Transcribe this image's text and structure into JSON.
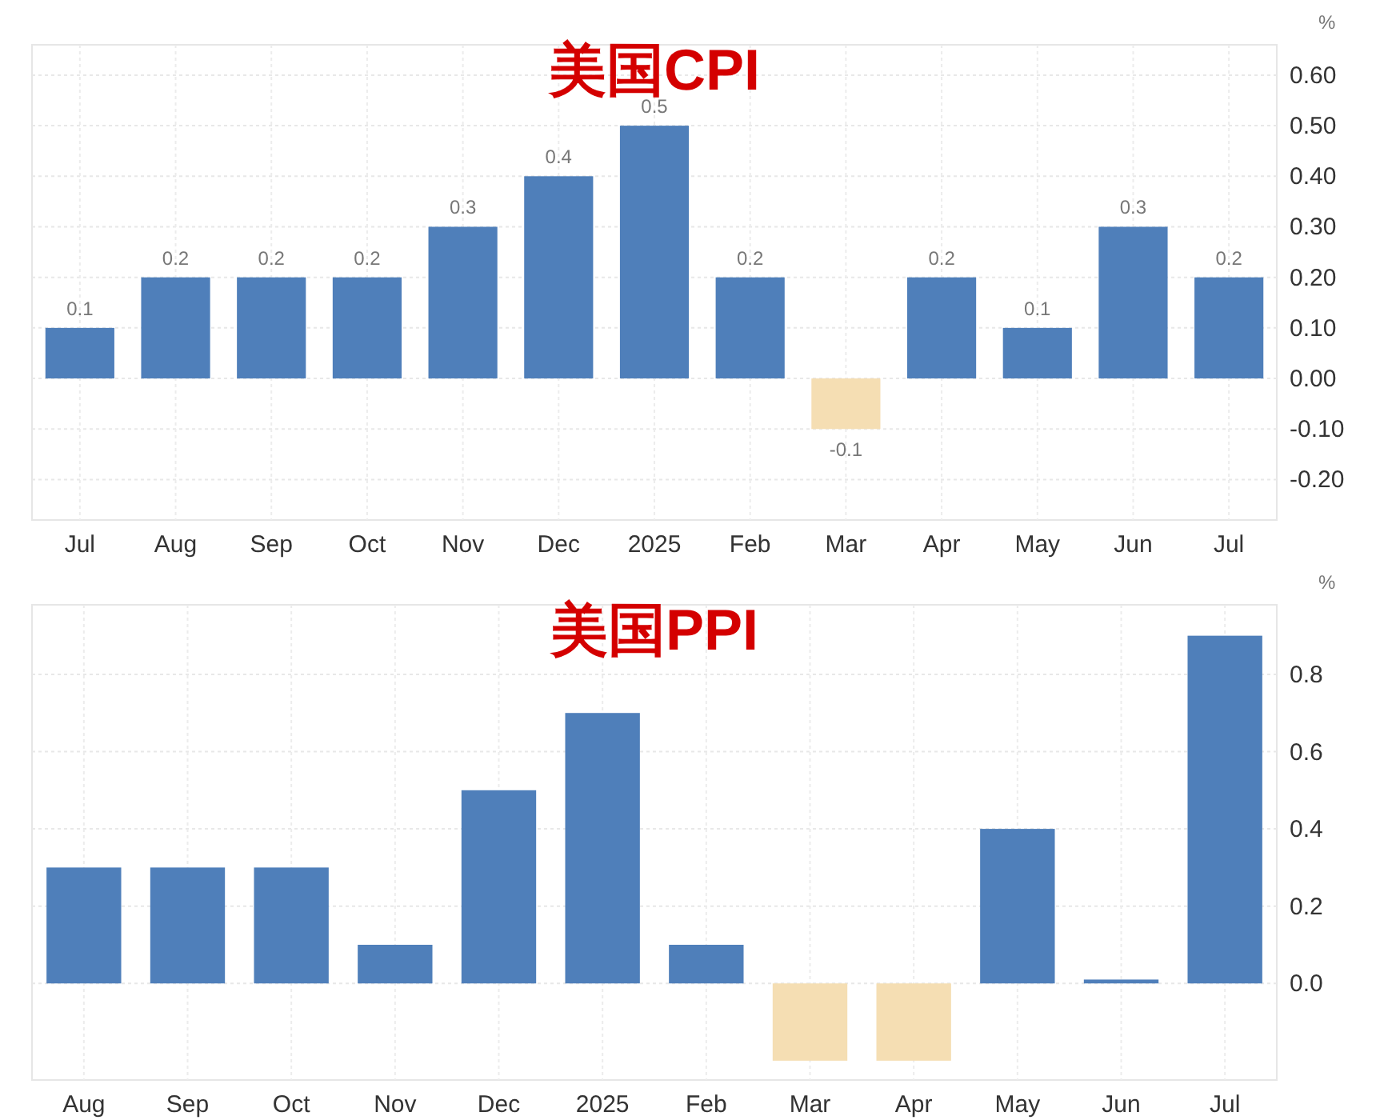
{
  "chart_data": [
    {
      "type": "bar",
      "title": "美国CPI",
      "ylabel": "%",
      "categories": [
        "Jul",
        "Aug",
        "Sep",
        "Oct",
        "Nov",
        "Dec",
        "2025",
        "Feb",
        "Mar",
        "Apr",
        "May",
        "Jun",
        "Jul"
      ],
      "values": [
        0.1,
        0.2,
        0.2,
        0.2,
        0.3,
        0.4,
        0.5,
        0.2,
        -0.1,
        0.2,
        0.1,
        0.3,
        0.2
      ],
      "colors": [
        "#4f7fba",
        "#4f7fba",
        "#4f7fba",
        "#4f7fba",
        "#4f7fba",
        "#4f7fba",
        "#4f7fba",
        "#4f7fba",
        "#f5deb3",
        "#4f7fba",
        "#4f7fba",
        "#4f7fba",
        "#4f7fba"
      ],
      "ylim": [
        -0.28,
        0.66
      ],
      "yticks": [
        {
          "value": -0.2,
          "label": "-0.20"
        },
        {
          "value": -0.1,
          "label": "-0.10"
        },
        {
          "value": 0,
          "label": "0.00"
        },
        {
          "value": 0.1,
          "label": "0.10"
        },
        {
          "value": 0.2,
          "label": "0.20"
        },
        {
          "value": 0.3,
          "label": "0.30"
        },
        {
          "value": 0.4,
          "label": "0.40"
        },
        {
          "value": 0.5,
          "label": "0.50"
        },
        {
          "value": 0.6,
          "label": "0.60"
        }
      ],
      "grid": true,
      "data_labels": true
    },
    {
      "type": "bar",
      "title": "美国PPI",
      "ylabel": "%",
      "categories": [
        "Aug",
        "Sep",
        "Oct",
        "Nov",
        "Dec",
        "2025",
        "Feb",
        "Mar",
        "Apr",
        "May",
        "Jun",
        "Jul"
      ],
      "values": [
        0.3,
        0.3,
        0.3,
        0.1,
        0.5,
        0.7,
        0.1,
        -0.2,
        -0.2,
        0.4,
        0.01,
        0.9
      ],
      "colors": [
        "#4f7fba",
        "#4f7fba",
        "#4f7fba",
        "#4f7fba",
        "#4f7fba",
        "#4f7fba",
        "#4f7fba",
        "#f5deb3",
        "#f5deb3",
        "#4f7fba",
        "#4f7fba",
        "#4f7fba"
      ],
      "ylim": [
        -0.25,
        0.98
      ],
      "yticks": [
        {
          "value": 0,
          "label": "0.0"
        },
        0.2,
        0.4,
        0.6,
        0.8
      ],
      "grid": true
    }
  ]
}
